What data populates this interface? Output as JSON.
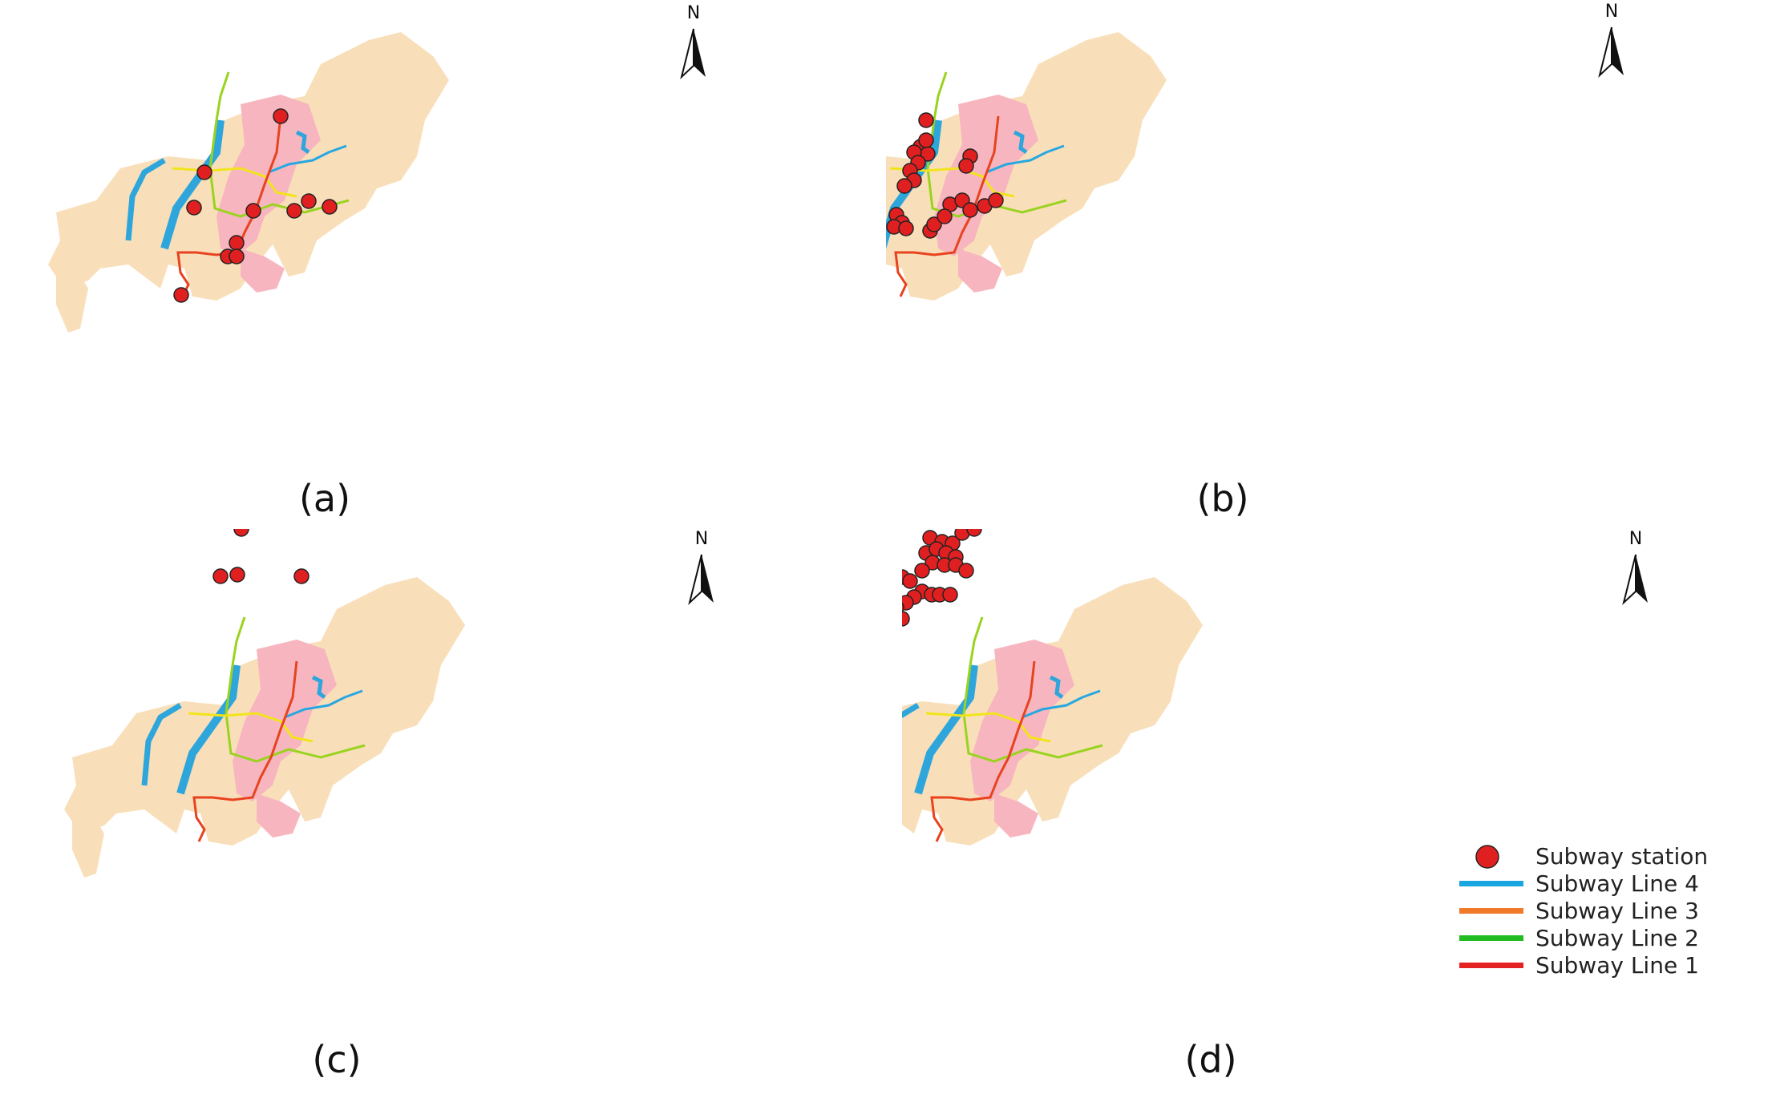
{
  "panels": [
    {
      "caption": "(a)",
      "north": "N"
    },
    {
      "caption": "(b)",
      "north": "N"
    },
    {
      "caption": "(c)",
      "north": "N"
    },
    {
      "caption": "(d)",
      "north": "N"
    }
  ],
  "legend": {
    "station": "Subway station",
    "lines": [
      {
        "label": "Subway Line 4",
        "color": "#1aa6e0"
      },
      {
        "label": "Subway Line 3",
        "color": "#f07a2a"
      },
      {
        "label": "Subway Line 2",
        "color": "#22bb22"
      },
      {
        "label": "Subway Line 1",
        "color": "#e52222"
      }
    ]
  },
  "colors": {
    "land": "#f9dfb9",
    "highlight": "#f7b6bf",
    "river": "#2ea6dc",
    "station": "#e02020",
    "line1_map": "#e8421f",
    "line2_map": "#9ad31f",
    "line3_map": "#f2e41c",
    "line4_map": "#28a8e0"
  }
}
